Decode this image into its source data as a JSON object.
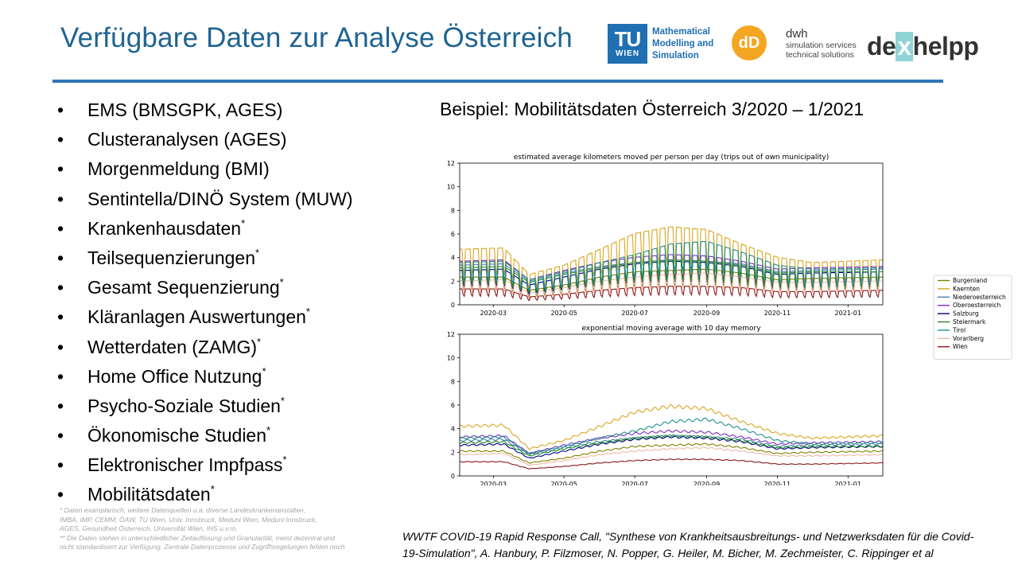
{
  "header": {
    "title": "Verfügbare Daten zur Analyse Österreich",
    "logos": {
      "tu": {
        "mark": "TU",
        "mark_sub": "WIEN",
        "lines": [
          "Mathematical",
          "Modelling and",
          "Simulation"
        ]
      },
      "dwh": {
        "mark": "dD",
        "name": "dwh",
        "lines": [
          "simulation services",
          "technical solutions"
        ]
      },
      "dexhelpp": {
        "pre": "de",
        "x": "x",
        "post": "helpp"
      }
    }
  },
  "bullets": [
    {
      "text": "EMS (BMSGPK, AGES)",
      "star": ""
    },
    {
      "text": "Clusteranalysen (AGES)",
      "star": ""
    },
    {
      "text": "Morgenmeldung (BMI)",
      "star": ""
    },
    {
      "text": "Sentintella/DINÖ System (MUW)",
      "star": ""
    },
    {
      "text": "Krankenhausdaten",
      "star": "*"
    },
    {
      "text": "Teilsequenzierungen",
      "star": "*"
    },
    {
      "text": "Gesamt Sequenzierung",
      "star": "*"
    },
    {
      "text": "Kläranlagen Auswertungen",
      "star": "*"
    },
    {
      "text": "Wetterdaten (ZAMG)",
      "star": "*"
    },
    {
      "text": "Home Office Nutzung",
      "star": "*"
    },
    {
      "text": "Psycho-Soziale Studien",
      "star": "*"
    },
    {
      "text": "Ökonomische Studien",
      "star": "*"
    },
    {
      "text": "Elektronischer Impfpass",
      "star": "*"
    },
    {
      "text": "Mobilitätsdaten",
      "star": "*"
    }
  ],
  "footnotes": [
    "* Daten examplarisch, weitere Datenquellen u.a. diverse Landeskrankenanstalten,",
    "IMBA, IMP, CEMM, ÖAW, TU Wien, Univ. Innsbruck, Meduni Wien, Meduni Innsbruck,",
    "AGES, Gesundheit Österreich, Universität Wien, IHS u.v.m.",
    "** Die Daten stehen in unterschiedlicher Zeitauflösung und Granularität, meist dezentral und",
    "nicht standardisiert zur Verfügung. Zentrale Datenprozesse und Zugriffsregelungen fehlen noch"
  ],
  "subtitle": "Beispiel: Mobilitätsdaten Österreich 3/2020 – 1/2021",
  "citation": [
    "WWTF COVID-19 Rapid Response Call, \"Synthese von Krankheitsausbreitungs- und Netzwerksdaten für die Covid-",
    "19-Simulation\", A. Hanbury, P. Filzmoser, N. Popper, G. Heiler, M. Bicher, M. Zechmeister, C. Rippinger et al"
  ],
  "chart_data": [
    {
      "type": "line",
      "title": "estimated average kilometers moved per person per day (trips out of own municipality)",
      "ylim": [
        0,
        12
      ],
      "yticks": [
        0,
        2,
        4,
        6,
        8,
        10,
        12
      ],
      "xlim": [
        "2020-02-01",
        "2021-01-31"
      ],
      "xticks": [
        "2020-03",
        "2020-05",
        "2020-07",
        "2020-09",
        "2020-11",
        "2021-01"
      ],
      "weekly_oscillation": true,
      "legend_position": "right",
      "series": [
        {
          "name": "Burgenland",
          "color": "#808000",
          "x": [
            "2020-02-01",
            "2020-03-10",
            "2020-04-01",
            "2020-05-01",
            "2020-06-01",
            "2020-07-01",
            "2020-08-01",
            "2020-09-01",
            "2020-10-01",
            "2020-11-01",
            "2020-12-01",
            "2021-01-31"
          ],
          "values": [
            2.1,
            2.1,
            1.1,
            1.5,
            2.1,
            2.5,
            2.6,
            2.7,
            2.4,
            1.9,
            2.0,
            2.1
          ]
        },
        {
          "name": "Kaernten",
          "color": "#daa520",
          "x": [
            "2020-02-01",
            "2020-03-10",
            "2020-04-01",
            "2020-05-01",
            "2020-06-01",
            "2020-07-01",
            "2020-08-01",
            "2020-09-01",
            "2020-10-01",
            "2020-11-01",
            "2020-12-01",
            "2021-01-31"
          ],
          "values": [
            4.2,
            4.3,
            2.3,
            3.0,
            4.2,
            5.4,
            5.9,
            5.7,
            4.6,
            3.6,
            3.2,
            3.4
          ]
        },
        {
          "name": "Niederoesterreich",
          "color": "#4682b4",
          "x": [
            "2020-02-01",
            "2020-03-10",
            "2020-04-01",
            "2020-05-01",
            "2020-06-01",
            "2020-07-01",
            "2020-08-01",
            "2020-09-01",
            "2020-10-01",
            "2020-11-01",
            "2020-12-01",
            "2021-01-31"
          ],
          "values": [
            3.0,
            3.1,
            1.8,
            2.4,
            2.9,
            3.2,
            3.4,
            3.3,
            3.1,
            2.5,
            2.6,
            2.7
          ]
        },
        {
          "name": "Oberoesterreich",
          "color": "#7b2fbe",
          "x": [
            "2020-02-01",
            "2020-03-10",
            "2020-04-01",
            "2020-05-01",
            "2020-06-01",
            "2020-07-01",
            "2020-08-01",
            "2020-09-01",
            "2020-10-01",
            "2020-11-01",
            "2020-12-01",
            "2021-01-31"
          ],
          "values": [
            3.3,
            3.4,
            1.9,
            2.6,
            3.2,
            3.6,
            3.8,
            3.7,
            3.3,
            2.7,
            2.8,
            2.9
          ]
        },
        {
          "name": "Salzburg",
          "color": "#00008b",
          "x": [
            "2020-02-01",
            "2020-03-10",
            "2020-04-01",
            "2020-05-01",
            "2020-06-01",
            "2020-07-01",
            "2020-08-01",
            "2020-09-01",
            "2020-10-01",
            "2020-11-01",
            "2020-12-01",
            "2021-01-31"
          ],
          "values": [
            2.6,
            2.7,
            1.5,
            2.1,
            2.7,
            3.1,
            3.3,
            3.2,
            2.9,
            2.3,
            2.4,
            2.5
          ]
        },
        {
          "name": "Steiermark",
          "color": "#228b22",
          "x": [
            "2020-02-01",
            "2020-03-10",
            "2020-04-01",
            "2020-05-01",
            "2020-06-01",
            "2020-07-01",
            "2020-08-01",
            "2020-09-01",
            "2020-10-01",
            "2020-11-01",
            "2020-12-01",
            "2021-01-31"
          ],
          "values": [
            2.8,
            2.9,
            1.7,
            2.3,
            2.8,
            3.2,
            3.4,
            3.3,
            3.0,
            2.4,
            2.5,
            2.5
          ]
        },
        {
          "name": "Tirol",
          "color": "#20908f",
          "x": [
            "2020-02-01",
            "2020-03-10",
            "2020-04-01",
            "2020-05-01",
            "2020-06-01",
            "2020-07-01",
            "2020-08-01",
            "2020-09-01",
            "2020-10-01",
            "2020-11-01",
            "2020-12-01",
            "2021-01-31"
          ],
          "values": [
            3.2,
            3.3,
            1.9,
            2.5,
            3.2,
            3.8,
            4.6,
            4.8,
            4.0,
            3.0,
            2.7,
            2.8
          ]
        },
        {
          "name": "Vorarlberg",
          "color": "#f0b9a8",
          "x": [
            "2020-02-01",
            "2020-03-10",
            "2020-04-01",
            "2020-05-01",
            "2020-06-01",
            "2020-07-01",
            "2020-08-01",
            "2020-09-01",
            "2020-10-01",
            "2020-11-01",
            "2020-12-01",
            "2021-01-31"
          ],
          "values": [
            1.8,
            1.9,
            0.9,
            1.3,
            1.8,
            2.1,
            2.3,
            2.4,
            2.1,
            1.7,
            1.7,
            1.8
          ]
        },
        {
          "name": "Wien",
          "color": "#8b1a1a",
          "x": [
            "2020-02-01",
            "2020-03-10",
            "2020-04-01",
            "2020-05-01",
            "2020-06-01",
            "2020-07-01",
            "2020-08-01",
            "2020-09-01",
            "2020-10-01",
            "2020-11-01",
            "2020-12-01",
            "2021-01-31"
          ],
          "values": [
            1.2,
            1.2,
            0.6,
            0.8,
            1.1,
            1.3,
            1.4,
            1.4,
            1.3,
            1.0,
            1.0,
            1.1
          ]
        }
      ]
    },
    {
      "type": "line",
      "title": "exponential moving average with 10 day memory",
      "ylim": [
        0,
        12
      ],
      "yticks": [
        0,
        2,
        4,
        6,
        8,
        10,
        12
      ],
      "xlim": [
        "2020-02-01",
        "2021-01-31"
      ],
      "xticks": [
        "2020-03",
        "2020-05",
        "2020-07",
        "2020-09",
        "2020-11",
        "2021-01"
      ],
      "weekly_oscillation": false,
      "series": [
        {
          "name": "Burgenland",
          "color": "#808000",
          "x": [
            "2020-02-01",
            "2020-03-10",
            "2020-04-01",
            "2020-05-01",
            "2020-06-01",
            "2020-07-01",
            "2020-08-01",
            "2020-09-01",
            "2020-10-01",
            "2020-11-01",
            "2020-12-01",
            "2021-01-31"
          ],
          "values": [
            2.1,
            2.1,
            1.1,
            1.5,
            2.1,
            2.5,
            2.6,
            2.7,
            2.4,
            1.9,
            2.0,
            2.1
          ]
        },
        {
          "name": "Kaernten",
          "color": "#daa520",
          "x": [
            "2020-02-01",
            "2020-03-10",
            "2020-04-01",
            "2020-05-01",
            "2020-06-01",
            "2020-07-01",
            "2020-08-01",
            "2020-09-01",
            "2020-10-01",
            "2020-11-01",
            "2020-12-01",
            "2021-01-31"
          ],
          "values": [
            4.2,
            4.3,
            2.3,
            3.0,
            4.2,
            5.4,
            5.9,
            5.7,
            4.6,
            3.6,
            3.2,
            3.4
          ]
        },
        {
          "name": "Niederoesterreich",
          "color": "#4682b4",
          "x": [
            "2020-02-01",
            "2020-03-10",
            "2020-04-01",
            "2020-05-01",
            "2020-06-01",
            "2020-07-01",
            "2020-08-01",
            "2020-09-01",
            "2020-10-01",
            "2020-11-01",
            "2020-12-01",
            "2021-01-31"
          ],
          "values": [
            3.0,
            3.1,
            1.8,
            2.4,
            2.9,
            3.2,
            3.4,
            3.3,
            3.1,
            2.5,
            2.6,
            2.7
          ]
        },
        {
          "name": "Oberoesterreich",
          "color": "#7b2fbe",
          "x": [
            "2020-02-01",
            "2020-03-10",
            "2020-04-01",
            "2020-05-01",
            "2020-06-01",
            "2020-07-01",
            "2020-08-01",
            "2020-09-01",
            "2020-10-01",
            "2020-11-01",
            "2020-12-01",
            "2021-01-31"
          ],
          "values": [
            3.3,
            3.4,
            1.9,
            2.6,
            3.2,
            3.6,
            3.8,
            3.7,
            3.3,
            2.7,
            2.8,
            2.9
          ]
        },
        {
          "name": "Salzburg",
          "color": "#00008b",
          "x": [
            "2020-02-01",
            "2020-03-10",
            "2020-04-01",
            "2020-05-01",
            "2020-06-01",
            "2020-07-01",
            "2020-08-01",
            "2020-09-01",
            "2020-10-01",
            "2020-11-01",
            "2020-12-01",
            "2021-01-31"
          ],
          "values": [
            2.6,
            2.7,
            1.5,
            2.1,
            2.7,
            3.1,
            3.3,
            3.2,
            2.9,
            2.3,
            2.4,
            2.5
          ]
        },
        {
          "name": "Steiermark",
          "color": "#228b22",
          "x": [
            "2020-02-01",
            "2020-03-10",
            "2020-04-01",
            "2020-05-01",
            "2020-06-01",
            "2020-07-01",
            "2020-08-01",
            "2020-09-01",
            "2020-10-01",
            "2020-11-01",
            "2020-12-01",
            "2021-01-31"
          ],
          "values": [
            2.8,
            2.9,
            1.7,
            2.3,
            2.8,
            3.2,
            3.4,
            3.3,
            3.0,
            2.4,
            2.5,
            2.5
          ]
        },
        {
          "name": "Tirol",
          "color": "#20908f",
          "x": [
            "2020-02-01",
            "2020-03-10",
            "2020-04-01",
            "2020-05-01",
            "2020-06-01",
            "2020-07-01",
            "2020-08-01",
            "2020-09-01",
            "2020-10-01",
            "2020-11-01",
            "2020-12-01",
            "2021-01-31"
          ],
          "values": [
            3.2,
            3.3,
            1.9,
            2.5,
            3.2,
            3.8,
            4.6,
            4.8,
            4.0,
            3.0,
            2.7,
            2.8
          ]
        },
        {
          "name": "Vorarlberg",
          "color": "#f0b9a8",
          "x": [
            "2020-02-01",
            "2020-03-10",
            "2020-04-01",
            "2020-05-01",
            "2020-06-01",
            "2020-07-01",
            "2020-08-01",
            "2020-09-01",
            "2020-10-01",
            "2020-11-01",
            "2020-12-01",
            "2021-01-31"
          ],
          "values": [
            1.8,
            1.9,
            0.9,
            1.3,
            1.8,
            2.1,
            2.3,
            2.4,
            2.1,
            1.7,
            1.7,
            1.8
          ]
        },
        {
          "name": "Wien",
          "color": "#8b1a1a",
          "x": [
            "2020-02-01",
            "2020-03-10",
            "2020-04-01",
            "2020-05-01",
            "2020-06-01",
            "2020-07-01",
            "2020-08-01",
            "2020-09-01",
            "2020-10-01",
            "2020-11-01",
            "2020-12-01",
            "2021-01-31"
          ],
          "values": [
            1.2,
            1.2,
            0.6,
            0.8,
            1.1,
            1.3,
            1.4,
            1.4,
            1.3,
            1.0,
            1.0,
            1.1
          ]
        }
      ]
    }
  ]
}
